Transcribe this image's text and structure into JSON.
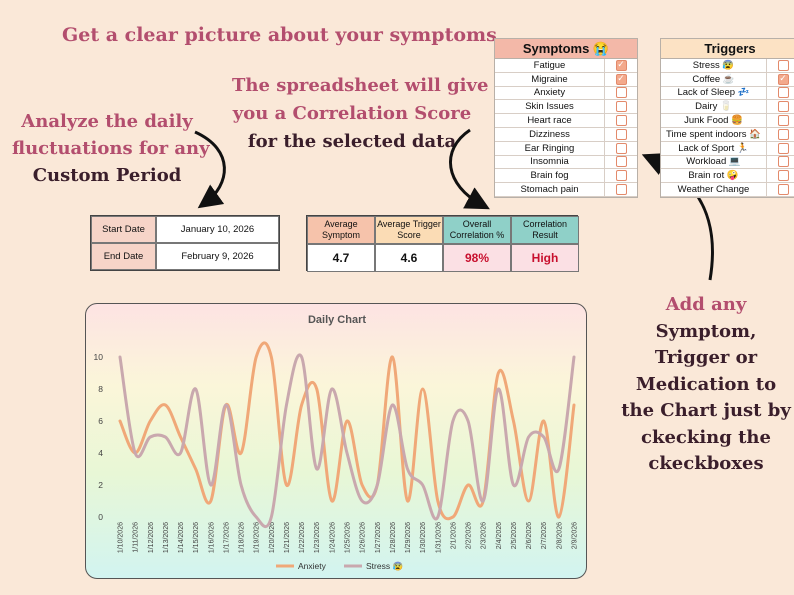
{
  "headline": "Get a clear picture about your symptoms",
  "correlation_note": {
    "line1": "The spreadsheet will give",
    "line2": "you a Correlation Score",
    "line3": "for the selected data"
  },
  "analyze_note": {
    "line1": "Analyze the daily",
    "line2": "fluctuations for any",
    "line3": "Custom Period"
  },
  "add_note": {
    "line1": "Add any",
    "line2": "Symptom,",
    "line3": "Trigger or",
    "line4": "Medication to",
    "line5": "the Chart just by",
    "line6": "ckecking the",
    "line7": "ckeckboxes"
  },
  "symptoms": {
    "title": "Symptoms 😭",
    "items": [
      {
        "label": "Fatigue",
        "checked": true
      },
      {
        "label": "Migraine",
        "checked": true
      },
      {
        "label": "Anxiety",
        "checked": false
      },
      {
        "label": "Skin Issues",
        "checked": false
      },
      {
        "label": "Heart race",
        "checked": false
      },
      {
        "label": "Dizziness",
        "checked": false
      },
      {
        "label": "Ear Ringing",
        "checked": false
      },
      {
        "label": "Insomnia",
        "checked": false
      },
      {
        "label": "Brain fog",
        "checked": false
      },
      {
        "label": "Stomach pain",
        "checked": false
      }
    ]
  },
  "triggers": {
    "title": "Triggers",
    "items": [
      {
        "label": "Stress 😰",
        "checked": false
      },
      {
        "label": "Coffee ☕",
        "checked": true
      },
      {
        "label": "Lack of Sleep 💤",
        "checked": false
      },
      {
        "label": "Dairy 🥛",
        "checked": false
      },
      {
        "label": "Junk Food 🍔",
        "checked": false
      },
      {
        "label": "Time spent indoors 🏠",
        "checked": false
      },
      {
        "label": "Lack of Sport 🏃",
        "checked": false
      },
      {
        "label": "Workload 💻",
        "checked": false
      },
      {
        "label": "Brain rot 🤪",
        "checked": false
      },
      {
        "label": "Weather Change",
        "checked": false
      }
    ]
  },
  "dates": {
    "start_label": "Start Date",
    "start_value": "January 10, 2026",
    "end_label": "End Date",
    "end_value": "February 9, 2026"
  },
  "scores": {
    "h1": "Average Symptom",
    "h2": "Average Trigger Score",
    "h3": "Overall Correlation %",
    "h4": "Correlation Result",
    "v1": "4.7",
    "v2": "4.6",
    "v3": "98%",
    "v4": "High"
  },
  "colors": {
    "accent": "#b34e6e",
    "anxiety_line": "#f0a878",
    "stress_line": "#c9a8ae"
  },
  "chart_data": {
    "type": "line",
    "title": "Daily Chart",
    "xlabel": "",
    "ylabel": "",
    "ylim": [
      0,
      10
    ],
    "yticks": [
      0,
      2,
      4,
      6,
      8,
      10
    ],
    "x": [
      "1/10/2026",
      "1/11/2026",
      "1/12/2026",
      "1/13/2026",
      "1/14/2026",
      "1/15/2026",
      "1/16/2026",
      "1/17/2026",
      "1/18/2026",
      "1/19/2026",
      "1/20/2026",
      "1/21/2026",
      "1/22/2026",
      "1/23/2026",
      "1/24/2026",
      "1/25/2026",
      "1/26/2026",
      "1/27/2026",
      "1/28/2026",
      "1/29/2026",
      "1/30/2026",
      "1/31/2026",
      "2/1/2026",
      "2/2/2026",
      "2/3/2026",
      "2/4/2026",
      "2/5/2026",
      "2/6/2026",
      "2/7/2026",
      "2/8/2026",
      "2/9/2026"
    ],
    "series": [
      {
        "name": "Anxiety",
        "values": [
          6,
          4,
          6,
          7,
          5,
          3,
          1,
          7,
          4,
          10,
          10,
          2,
          7,
          8,
          1,
          6,
          2,
          2,
          10,
          1,
          8,
          1,
          0,
          2,
          1,
          9,
          6,
          1,
          6,
          0,
          7
        ]
      },
      {
        "name": "Stress 😰",
        "values": [
          10,
          4,
          5,
          5,
          4,
          8,
          2,
          7,
          2,
          0,
          0,
          7,
          10,
          3,
          8,
          4,
          1,
          2,
          7,
          3,
          2,
          0,
          6,
          6,
          1,
          8,
          2,
          5,
          5,
          3,
          10
        ]
      }
    ],
    "legend": "bottom",
    "grid": false
  }
}
